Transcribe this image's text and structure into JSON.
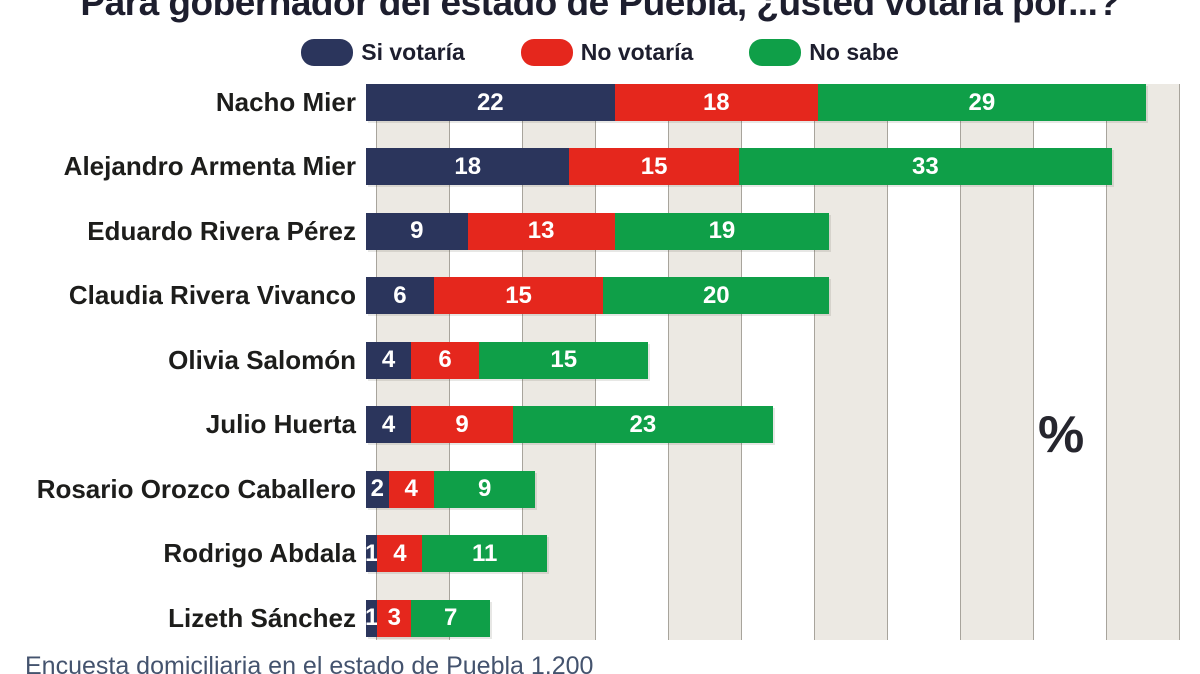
{
  "title": "Para gobernador del estado de Puebla, ¿usted votaría por...?",
  "percent_symbol": "%",
  "source_note": "Encuesta domiciliaria en el estado de Puebla 1,200",
  "colors": {
    "si_votaria": "#2B355C",
    "no_votaria": "#E5271D",
    "no_sabe": "#0F9F48",
    "band_fill": "#ECE9E3",
    "band_line": "#A8A49C",
    "value_text": "#FFFFFF",
    "label_text": "#1D1D1B"
  },
  "chart_data": {
    "type": "bar",
    "orientation": "horizontal",
    "stacked": true,
    "title": "Para gobernador del estado de Puebla, ¿usted votaría por...?",
    "unit": "%",
    "legend_position": "top",
    "grid": "vertical-bands",
    "xlim": [
      0,
      71
    ],
    "categories": [
      "Nacho Mier",
      "Alejandro Armenta Mier",
      "Eduardo Rivera Pérez",
      "Claudia Rivera Vivanco",
      "Olivia Salomón",
      "Julio Huerta",
      "Rosario Orozco Caballero",
      "Rodrigo Abdala",
      "Lizeth Sánchez"
    ],
    "series": [
      {
        "name": "Si votaría",
        "color": "#2B355C",
        "values": [
          22,
          18,
          9,
          6,
          4,
          4,
          2,
          1,
          1
        ]
      },
      {
        "name": "No votaría",
        "color": "#E5271D",
        "values": [
          18,
          15,
          13,
          15,
          6,
          9,
          4,
          4,
          3
        ]
      },
      {
        "name": "No sabe",
        "color": "#0F9F48",
        "values": [
          29,
          33,
          19,
          20,
          15,
          23,
          9,
          11,
          7
        ]
      }
    ]
  }
}
